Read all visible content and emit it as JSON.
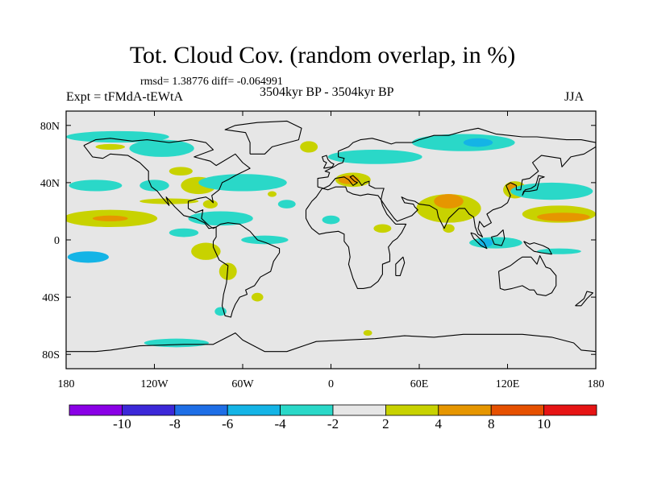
{
  "header": {
    "title": "Tot. Cloud Cov. (random overlap, in %)",
    "stats": "rmsd= 1.38776 diff= -0.064991",
    "left_label": "Expt = tFMdA-tEWtA",
    "center_label": "3504kyr BP - 3504kyr BP",
    "right_label": "JJA"
  },
  "chart_data": {
    "type": "heatmap",
    "title": "Tot. Cloud Cov. (random overlap, in %)",
    "subtitle": "3504kyr BP - 3504kyr BP",
    "xlabel": "",
    "ylabel": "",
    "xlim": [
      -180,
      180
    ],
    "ylim": [
      -90,
      90
    ],
    "x_ticks": [
      {
        "value": -180,
        "label": "180"
      },
      {
        "value": -120,
        "label": "120W"
      },
      {
        "value": -60,
        "label": "60W"
      },
      {
        "value": 0,
        "label": "0"
      },
      {
        "value": 60,
        "label": "60E"
      },
      {
        "value": 120,
        "label": "120E"
      },
      {
        "value": 180,
        "label": "180"
      }
    ],
    "y_ticks": [
      {
        "value": 80,
        "label": "80N"
      },
      {
        "value": 40,
        "label": "40N"
      },
      {
        "value": 0,
        "label": "0"
      },
      {
        "value": -40,
        "label": "40S"
      },
      {
        "value": -80,
        "label": "80S"
      }
    ],
    "colorbar": {
      "levels": [
        -10,
        -8,
        -6,
        -4,
        -2,
        2,
        4,
        8,
        10
      ],
      "labels": [
        "-10",
        "-8",
        "-6",
        "-4",
        "-2",
        "2",
        "4",
        "8",
        "10"
      ],
      "colors": [
        "#8a00e6",
        "#3c28d8",
        "#1e6ee6",
        "#14b4e6",
        "#2ad8c8",
        "#e6e6e6",
        "#c8d200",
        "#e69600",
        "#e65000",
        "#e61414"
      ]
    },
    "regions": [
      {
        "level": "2to4",
        "lon": -150,
        "lat": 15,
        "rlon": 32,
        "rlat": 6
      },
      {
        "level": "4to8",
        "lon": -150,
        "lat": 15,
        "rlon": 12,
        "rlat": 2
      },
      {
        "level": "-4to-2",
        "lon": -160,
        "lat": 38,
        "rlon": 18,
        "rlat": 4
      },
      {
        "level": "-4to-2",
        "lon": -120,
        "lat": 38,
        "rlon": 10,
        "rlat": 4
      },
      {
        "level": "2to4",
        "lon": -110,
        "lat": 27,
        "rlon": 20,
        "rlat": 2
      },
      {
        "level": "-6to-4",
        "lon": -165,
        "lat": -12,
        "rlon": 14,
        "rlat": 4
      },
      {
        "level": "2to4",
        "lon": -85,
        "lat": -8,
        "rlon": 10,
        "rlat": 6
      },
      {
        "level": "-4to-2",
        "lon": -145,
        "lat": 72,
        "rlon": 35,
        "rlat": 4
      },
      {
        "level": "2to4",
        "lon": -150,
        "lat": 65,
        "rlon": 10,
        "rlat": 2
      },
      {
        "level": "-4to-2",
        "lon": -115,
        "lat": 64,
        "rlon": 22,
        "rlat": 6
      },
      {
        "level": "2to4",
        "lon": -102,
        "lat": 48,
        "rlon": 8,
        "rlat": 3
      },
      {
        "level": "2to4",
        "lon": -90,
        "lat": 38,
        "rlon": 12,
        "rlat": 6
      },
      {
        "level": "-4to-2",
        "lon": -60,
        "lat": 40,
        "rlon": 30,
        "rlat": 6
      },
      {
        "level": "-4to-2",
        "lon": -75,
        "lat": 15,
        "rlon": 22,
        "rlat": 5
      },
      {
        "level": "2to4",
        "lon": -82,
        "lat": 25,
        "rlon": 5,
        "rlat": 3
      },
      {
        "level": "-4to-2",
        "lon": -100,
        "lat": 5,
        "rlon": 10,
        "rlat": 3
      },
      {
        "level": "-4to-2",
        "lon": -45,
        "lat": 0,
        "rlon": 16,
        "rlat": 3
      },
      {
        "level": "2to4",
        "lon": -70,
        "lat": -22,
        "rlon": 6,
        "rlat": 6
      },
      {
        "level": "-4to-2",
        "lon": -30,
        "lat": 25,
        "rlon": 6,
        "rlat": 3
      },
      {
        "level": "2to4",
        "lon": -40,
        "lat": 32,
        "rlon": 3,
        "rlat": 2
      },
      {
        "level": "-4to-2",
        "lon": 0,
        "lat": 14,
        "rlon": 6,
        "rlat": 3
      },
      {
        "level": "2to4",
        "lon": -15,
        "lat": 65,
        "rlon": 6,
        "rlat": 4
      },
      {
        "level": "2to4",
        "lon": 15,
        "lat": 42,
        "rlon": 12,
        "rlat": 5
      },
      {
        "level": "4to8",
        "lon": 12,
        "lat": 42,
        "rlon": 7,
        "rlat": 3
      },
      {
        "level": "-4to-2",
        "lon": 30,
        "lat": 58,
        "rlon": 32,
        "rlat": 5
      },
      {
        "level": "-4to-2",
        "lon": 90,
        "lat": 68,
        "rlon": 35,
        "rlat": 6
      },
      {
        "level": "-6to-4",
        "lon": 100,
        "lat": 68,
        "rlon": 10,
        "rlat": 3
      },
      {
        "level": "2to4",
        "lon": 80,
        "lat": 22,
        "rlon": 22,
        "rlat": 10
      },
      {
        "level": "4to8",
        "lon": 80,
        "lat": 27,
        "rlon": 10,
        "rlat": 5
      },
      {
        "level": "2to4",
        "lon": 125,
        "lat": 35,
        "rlon": 8,
        "rlat": 6
      },
      {
        "level": "4to8",
        "lon": 123,
        "lat": 37,
        "rlon": 3,
        "rlat": 3
      },
      {
        "level": "-4to-2",
        "lon": 150,
        "lat": 34,
        "rlon": 28,
        "rlat": 6
      },
      {
        "level": "2to4",
        "lon": 155,
        "lat": 18,
        "rlon": 25,
        "rlat": 6
      },
      {
        "level": "4to8",
        "lon": 158,
        "lat": 16,
        "rlon": 18,
        "rlat": 3
      },
      {
        "level": "-4to-2",
        "lon": 112,
        "lat": -2,
        "rlon": 18,
        "rlat": 4
      },
      {
        "level": "-6to-4",
        "lon": 105,
        "lat": -2,
        "rlon": 5,
        "rlat": 3
      },
      {
        "level": "-4to-2",
        "lon": 155,
        "lat": -8,
        "rlon": 15,
        "rlat": 2
      },
      {
        "level": "-4to-2",
        "lon": 45,
        "lat": 58,
        "rlon": 3,
        "rlat": 2
      },
      {
        "level": "2to4",
        "lon": 35,
        "lat": 8,
        "rlon": 6,
        "rlat": 3
      },
      {
        "level": "2to4",
        "lon": 80,
        "lat": 8,
        "rlon": 4,
        "rlat": 3
      },
      {
        "level": "-4to-2",
        "lon": -105,
        "lat": -72,
        "rlon": 22,
        "rlat": 3
      },
      {
        "level": "-4to-2",
        "lon": -75,
        "lat": -50,
        "rlon": 4,
        "rlat": 3
      },
      {
        "level": "2to4",
        "lon": -50,
        "lat": -40,
        "rlon": 4,
        "rlat": 3
      },
      {
        "level": "2to4",
        "lon": 25,
        "lat": -65,
        "rlon": 3,
        "rlat": 2
      }
    ]
  }
}
